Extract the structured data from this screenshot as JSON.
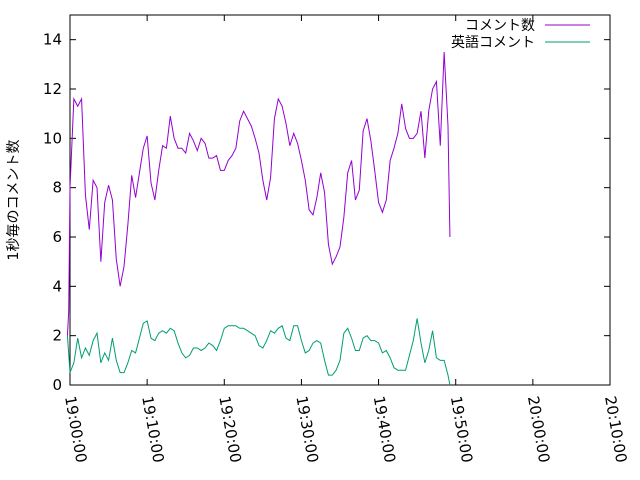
{
  "chart_data": {
    "type": "line",
    "title": "",
    "xlabel": "",
    "ylabel": "1秒毎のコメント数",
    "xlim": [
      "19:00:00",
      "20:10:00"
    ],
    "ylim": [
      0,
      15
    ],
    "x_ticks": [
      "19:00:00",
      "19:10:00",
      "19:20:00",
      "19:30:00",
      "19:40:00",
      "19:50:00",
      "20:00:00",
      "20:10:00"
    ],
    "y_ticks": [
      "0",
      "2",
      "4",
      "6",
      "8",
      "10",
      "12",
      "14"
    ],
    "grid": false,
    "legend_position": "top-right",
    "series": [
      {
        "name": "コメント数",
        "color": "#9400d3",
        "points": [
          [
            "18:59:40",
            2.0
          ],
          [
            "18:59:50",
            3.0
          ],
          [
            "19:00:00",
            8.0
          ],
          [
            "19:00:30",
            11.6
          ],
          [
            "19:01:00",
            11.3
          ],
          [
            "19:01:30",
            11.6
          ],
          [
            "19:02:00",
            7.7
          ],
          [
            "19:02:30",
            6.3
          ],
          [
            "19:03:00",
            8.3
          ],
          [
            "19:03:30",
            8.0
          ],
          [
            "19:04:00",
            5.0
          ],
          [
            "19:04:30",
            7.4
          ],
          [
            "19:05:00",
            8.1
          ],
          [
            "19:05:30",
            7.5
          ],
          [
            "19:06:00",
            5.1
          ],
          [
            "19:06:30",
            4.0
          ],
          [
            "19:07:00",
            4.8
          ],
          [
            "19:07:30",
            6.5
          ],
          [
            "19:08:00",
            8.5
          ],
          [
            "19:08:30",
            7.6
          ],
          [
            "19:09:00",
            8.6
          ],
          [
            "19:09:30",
            9.6
          ],
          [
            "19:10:00",
            10.1
          ],
          [
            "19:10:30",
            8.2
          ],
          [
            "19:11:00",
            7.5
          ],
          [
            "19:11:30",
            8.7
          ],
          [
            "19:12:00",
            9.7
          ],
          [
            "19:12:30",
            9.6
          ],
          [
            "19:13:00",
            10.9
          ],
          [
            "19:13:30",
            10.0
          ],
          [
            "19:14:00",
            9.6
          ],
          [
            "19:14:30",
            9.6
          ],
          [
            "19:15:00",
            9.4
          ],
          [
            "19:15:30",
            10.2
          ],
          [
            "19:16:00",
            9.9
          ],
          [
            "19:16:30",
            9.5
          ],
          [
            "19:17:00",
            10.0
          ],
          [
            "19:17:30",
            9.8
          ],
          [
            "19:18:00",
            9.2
          ],
          [
            "19:18:30",
            9.2
          ],
          [
            "19:19:00",
            9.3
          ],
          [
            "19:19:30",
            8.7
          ],
          [
            "19:20:00",
            8.7
          ],
          [
            "19:20:30",
            9.1
          ],
          [
            "19:21:00",
            9.3
          ],
          [
            "19:21:30",
            9.6
          ],
          [
            "19:22:00",
            10.7
          ],
          [
            "19:22:30",
            11.1
          ],
          [
            "19:23:00",
            10.8
          ],
          [
            "19:23:30",
            10.5
          ],
          [
            "19:24:00",
            10.0
          ],
          [
            "19:24:30",
            9.4
          ],
          [
            "19:25:00",
            8.3
          ],
          [
            "19:25:30",
            7.5
          ],
          [
            "19:26:00",
            8.4
          ],
          [
            "19:26:30",
            10.8
          ],
          [
            "19:27:00",
            11.6
          ],
          [
            "19:27:30",
            11.3
          ],
          [
            "19:28:00",
            10.6
          ],
          [
            "19:28:30",
            9.7
          ],
          [
            "19:29:00",
            10.2
          ],
          [
            "19:29:30",
            9.8
          ],
          [
            "19:30:00",
            9.1
          ],
          [
            "19:30:30",
            8.3
          ],
          [
            "19:31:00",
            7.1
          ],
          [
            "19:31:30",
            6.9
          ],
          [
            "19:32:00",
            7.6
          ],
          [
            "19:32:30",
            8.6
          ],
          [
            "19:33:00",
            7.8
          ],
          [
            "19:33:30",
            5.7
          ],
          [
            "19:34:00",
            4.9
          ],
          [
            "19:34:30",
            5.2
          ],
          [
            "19:35:00",
            5.6
          ],
          [
            "19:35:30",
            6.8
          ],
          [
            "19:36:00",
            8.6
          ],
          [
            "19:36:30",
            9.1
          ],
          [
            "19:37:00",
            7.5
          ],
          [
            "19:37:30",
            7.9
          ],
          [
            "19:38:00",
            10.3
          ],
          [
            "19:38:30",
            10.8
          ],
          [
            "19:39:00",
            9.9
          ],
          [
            "19:39:30",
            8.7
          ],
          [
            "19:40:00",
            7.4
          ],
          [
            "19:40:30",
            7.0
          ],
          [
            "19:41:00",
            7.5
          ],
          [
            "19:41:30",
            9.1
          ],
          [
            "19:42:00",
            9.6
          ],
          [
            "19:42:30",
            10.2
          ],
          [
            "19:43:00",
            11.4
          ],
          [
            "19:43:30",
            10.4
          ],
          [
            "19:44:00",
            10.0
          ],
          [
            "19:44:30",
            10.0
          ],
          [
            "19:45:00",
            10.2
          ],
          [
            "19:45:30",
            11.1
          ],
          [
            "19:46:00",
            9.2
          ],
          [
            "19:46:30",
            11.1
          ],
          [
            "19:47:00",
            12.0
          ],
          [
            "19:47:30",
            12.3
          ],
          [
            "19:48:00",
            9.7
          ],
          [
            "19:48:30",
            13.5
          ],
          [
            "19:49:00",
            10.5
          ],
          [
            "19:49:15",
            6.0
          ]
        ]
      },
      {
        "name": "英語コメント",
        "color": "#009e73",
        "points": [
          [
            "18:59:40",
            2.0
          ],
          [
            "19:00:00",
            0.5
          ],
          [
            "19:00:30",
            0.9
          ],
          [
            "19:01:00",
            1.9
          ],
          [
            "19:01:30",
            1.1
          ],
          [
            "19:02:00",
            1.5
          ],
          [
            "19:02:30",
            1.2
          ],
          [
            "19:03:00",
            1.8
          ],
          [
            "19:03:30",
            2.1
          ],
          [
            "19:04:00",
            0.9
          ],
          [
            "19:04:30",
            1.3
          ],
          [
            "19:05:00",
            1.0
          ],
          [
            "19:05:30",
            1.9
          ],
          [
            "19:06:00",
            1.0
          ],
          [
            "19:06:30",
            0.5
          ],
          [
            "19:07:00",
            0.5
          ],
          [
            "19:07:30",
            0.9
          ],
          [
            "19:08:00",
            1.4
          ],
          [
            "19:08:30",
            1.3
          ],
          [
            "19:09:00",
            1.9
          ],
          [
            "19:09:30",
            2.5
          ],
          [
            "19:10:00",
            2.6
          ],
          [
            "19:10:30",
            1.9
          ],
          [
            "19:11:00",
            1.8
          ],
          [
            "19:11:30",
            2.1
          ],
          [
            "19:12:00",
            2.2
          ],
          [
            "19:12:30",
            2.1
          ],
          [
            "19:13:00",
            2.3
          ],
          [
            "19:13:30",
            2.2
          ],
          [
            "19:14:00",
            1.7
          ],
          [
            "19:14:30",
            1.3
          ],
          [
            "19:15:00",
            1.1
          ],
          [
            "19:15:30",
            1.2
          ],
          [
            "19:16:00",
            1.5
          ],
          [
            "19:16:30",
            1.5
          ],
          [
            "19:17:00",
            1.4
          ],
          [
            "19:17:30",
            1.5
          ],
          [
            "19:18:00",
            1.7
          ],
          [
            "19:18:30",
            1.6
          ],
          [
            "19:19:00",
            1.4
          ],
          [
            "19:19:30",
            1.8
          ],
          [
            "19:20:00",
            2.3
          ],
          [
            "19:20:30",
            2.4
          ],
          [
            "19:21:00",
            2.4
          ],
          [
            "19:21:30",
            2.4
          ],
          [
            "19:22:00",
            2.3
          ],
          [
            "19:22:30",
            2.3
          ],
          [
            "19:23:00",
            2.2
          ],
          [
            "19:23:30",
            2.1
          ],
          [
            "19:24:00",
            2.0
          ],
          [
            "19:24:30",
            1.6
          ],
          [
            "19:25:00",
            1.5
          ],
          [
            "19:25:30",
            1.8
          ],
          [
            "19:26:00",
            2.2
          ],
          [
            "19:26:30",
            2.1
          ],
          [
            "19:27:00",
            2.3
          ],
          [
            "19:27:30",
            2.4
          ],
          [
            "19:28:00",
            1.9
          ],
          [
            "19:28:30",
            1.8
          ],
          [
            "19:29:00",
            2.4
          ],
          [
            "19:29:30",
            2.4
          ],
          [
            "19:30:00",
            1.8
          ],
          [
            "19:30:30",
            1.3
          ],
          [
            "19:31:00",
            1.4
          ],
          [
            "19:31:30",
            1.7
          ],
          [
            "19:32:00",
            1.8
          ],
          [
            "19:32:30",
            1.7
          ],
          [
            "19:33:00",
            1.0
          ],
          [
            "19:33:30",
            0.4
          ],
          [
            "19:34:00",
            0.4
          ],
          [
            "19:34:30",
            0.6
          ],
          [
            "19:35:00",
            1.0
          ],
          [
            "19:35:30",
            2.1
          ],
          [
            "19:36:00",
            2.3
          ],
          [
            "19:36:30",
            1.9
          ],
          [
            "19:37:00",
            1.4
          ],
          [
            "19:37:30",
            1.4
          ],
          [
            "19:38:00",
            1.9
          ],
          [
            "19:38:30",
            2.0
          ],
          [
            "19:39:00",
            1.8
          ],
          [
            "19:39:30",
            1.8
          ],
          [
            "19:40:00",
            1.7
          ],
          [
            "19:40:30",
            1.3
          ],
          [
            "19:41:00",
            1.4
          ],
          [
            "19:41:30",
            1.1
          ],
          [
            "19:42:00",
            0.7
          ],
          [
            "19:42:30",
            0.6
          ],
          [
            "19:43:00",
            0.6
          ],
          [
            "19:43:30",
            0.6
          ],
          [
            "19:44:00",
            1.2
          ],
          [
            "19:44:30",
            1.8
          ],
          [
            "19:45:00",
            2.7
          ],
          [
            "19:45:30",
            1.7
          ],
          [
            "19:46:00",
            0.9
          ],
          [
            "19:46:30",
            1.4
          ],
          [
            "19:47:00",
            2.2
          ],
          [
            "19:47:30",
            1.1
          ],
          [
            "19:48:00",
            1.0
          ],
          [
            "19:48:30",
            1.0
          ],
          [
            "19:49:00",
            0.4
          ],
          [
            "19:49:15",
            0.0
          ]
        ]
      }
    ]
  }
}
